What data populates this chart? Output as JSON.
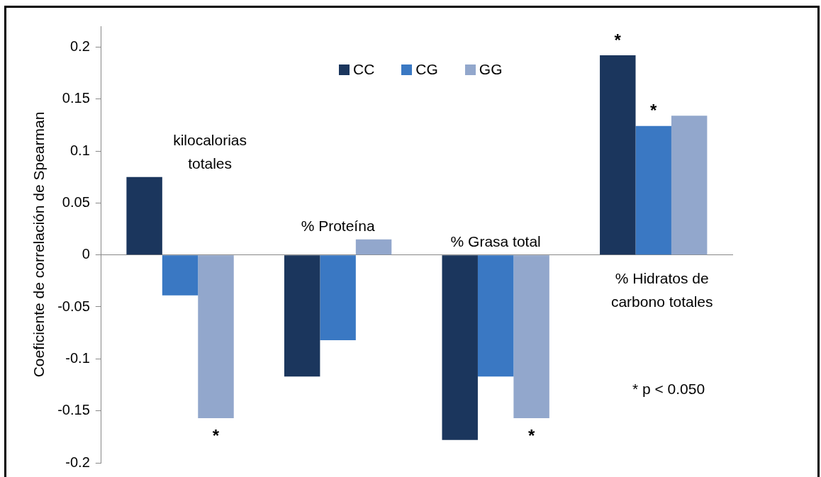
{
  "chart_data": {
    "type": "bar",
    "ylabel": "Coeficiente de correlación de Spearman",
    "categories": [
      "kilocalorias totales",
      "% Proteína",
      "% Grasa total",
      "% Hidratos de carbono totales"
    ],
    "series": [
      {
        "name": "CC",
        "color": "#1b365d",
        "values": [
          0.075,
          -0.117,
          -0.178,
          0.192
        ]
      },
      {
        "name": "CG",
        "color": "#3a78c3",
        "values": [
          -0.039,
          -0.082,
          -0.117,
          0.124
        ]
      },
      {
        "name": "GG",
        "color": "#92a7cc",
        "values": [
          -0.157,
          0.015,
          -0.157,
          0.134
        ]
      }
    ],
    "ylim": [
      -0.2,
      0.22
    ],
    "yticks": [
      -0.2,
      -0.15,
      -0.1,
      -0.05,
      0,
      0.05,
      0.1,
      0.15,
      0.2
    ],
    "legend": "top",
    "annotations": [
      "*",
      "*",
      "*",
      "*",
      "* p < 0.050"
    ]
  }
}
